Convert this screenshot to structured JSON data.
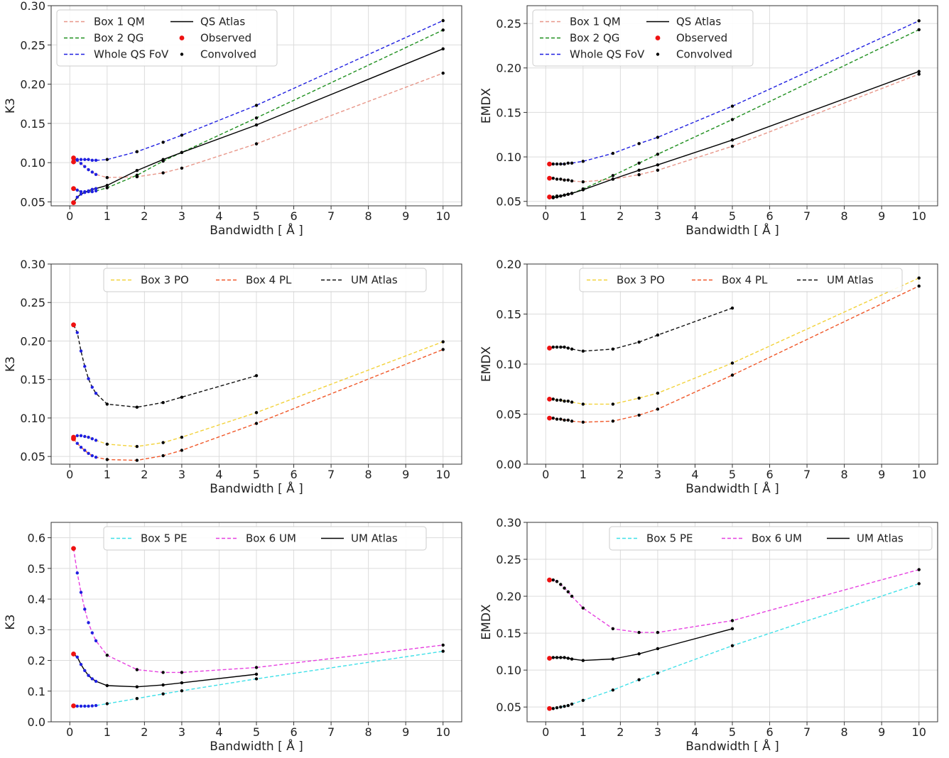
{
  "chart_data": [
    {
      "type": "line",
      "xlabel": "Bandwidth [ Å ]",
      "ylabel": "K3",
      "xlim": [
        -0.5,
        10.5
      ],
      "ylim": [
        0.045,
        0.3
      ],
      "xticks": [
        "0",
        "1",
        "2",
        "3",
        "4",
        "5",
        "6",
        "7",
        "8",
        "9",
        "10"
      ],
      "yticks": [
        "0.05",
        "0.10",
        "0.15",
        "0.20",
        "0.25",
        "0.30"
      ],
      "grid": true,
      "legend": {
        "placement": "top-left",
        "columns": 2,
        "entries": [
          "Box 1 QM",
          "Box 2 QG",
          "Whole QS FoV",
          "QS Atlas",
          "Observed",
          "Convolved"
        ]
      },
      "series": [
        {
          "name": "Box 1 QM",
          "color": "#e8978a",
          "dash": "dashed",
          "x": [
            0.1,
            0.2,
            0.3,
            0.4,
            0.5,
            0.6,
            0.7,
            1.0,
            1.8,
            2.5,
            3.0,
            5.0,
            10.0
          ],
          "y": [
            0.106,
            0.103,
            0.099,
            0.095,
            0.091,
            0.088,
            0.085,
            0.081,
            0.082,
            0.087,
            0.093,
            0.124,
            0.214
          ]
        },
        {
          "name": "Box 2 QG",
          "color": "#1f8f1f",
          "dash": "dashed",
          "x": [
            0.1,
            0.2,
            0.3,
            0.4,
            0.5,
            0.6,
            0.7,
            1.0,
            1.8,
            2.5,
            3.0,
            5.0,
            10.0
          ],
          "y": [
            0.067,
            0.065,
            0.063,
            0.063,
            0.063,
            0.063,
            0.064,
            0.068,
            0.084,
            0.102,
            0.113,
            0.157,
            0.269
          ]
        },
        {
          "name": "Whole QS FoV",
          "color": "#1f1fe0",
          "dash": "dashed",
          "x": [
            0.1,
            0.2,
            0.3,
            0.4,
            0.5,
            0.6,
            0.7,
            1.0,
            1.8,
            2.5,
            3.0,
            5.0,
            10.0
          ],
          "y": [
            0.104,
            0.104,
            0.104,
            0.104,
            0.104,
            0.103,
            0.103,
            0.104,
            0.114,
            0.126,
            0.135,
            0.173,
            0.281
          ]
        },
        {
          "name": "QS Atlas",
          "color": "#000000",
          "dash": "solid",
          "x": [
            0.1,
            0.2,
            0.3,
            0.4,
            0.5,
            0.6,
            0.7,
            1.0,
            1.8,
            2.5,
            3.0,
            5.0,
            10.0
          ],
          "y": [
            0.049,
            0.056,
            0.06,
            0.062,
            0.064,
            0.066,
            0.067,
            0.071,
            0.09,
            0.104,
            0.113,
            0.148,
            0.245
          ]
        }
      ],
      "observed": [
        {
          "x": 0.1,
          "y": 0.106
        },
        {
          "x": 0.1,
          "y": 0.101
        },
        {
          "x": 0.1,
          "y": 0.067
        },
        {
          "x": 0.1,
          "y": 0.049
        }
      ]
    },
    {
      "type": "line",
      "xlabel": "Bandwidth [ Å ]",
      "ylabel": "EMDX",
      "xlim": [
        -0.5,
        10.5
      ],
      "ylim": [
        0.045,
        0.27
      ],
      "xticks": [
        "0",
        "1",
        "2",
        "3",
        "4",
        "5",
        "6",
        "7",
        "8",
        "9",
        "10"
      ],
      "yticks": [
        "0.05",
        "0.10",
        "0.15",
        "0.20",
        "0.25"
      ],
      "grid": true,
      "legend": {
        "placement": "top-left",
        "columns": 2,
        "entries": [
          "Box 1 QM",
          "Box 2 QG",
          "Whole QS FoV",
          "QS Atlas",
          "Observed",
          "Convolved"
        ]
      },
      "series": [
        {
          "name": "Box 1 QM",
          "color": "#e8978a",
          "dash": "dashed",
          "x": [
            0.1,
            0.2,
            0.3,
            0.4,
            0.5,
            0.6,
            0.7,
            1.0,
            1.8,
            2.5,
            3.0,
            5.0,
            10.0
          ],
          "y": [
            0.076,
            0.076,
            0.075,
            0.075,
            0.074,
            0.074,
            0.073,
            0.072,
            0.075,
            0.08,
            0.085,
            0.112,
            0.193
          ]
        },
        {
          "name": "Box 2 QG",
          "color": "#1f8f1f",
          "dash": "dashed",
          "x": [
            0.1,
            0.2,
            0.3,
            0.4,
            0.5,
            0.6,
            0.7,
            1.0,
            1.8,
            2.5,
            3.0,
            5.0,
            10.0
          ],
          "y": [
            0.055,
            0.055,
            0.056,
            0.056,
            0.057,
            0.058,
            0.059,
            0.064,
            0.079,
            0.093,
            0.103,
            0.142,
            0.243
          ]
        },
        {
          "name": "Whole QS FoV",
          "color": "#1f1fe0",
          "dash": "dashed",
          "x": [
            0.1,
            0.2,
            0.3,
            0.4,
            0.5,
            0.6,
            0.7,
            1.0,
            1.8,
            2.5,
            3.0,
            5.0,
            10.0
          ],
          "y": [
            0.092,
            0.092,
            0.092,
            0.092,
            0.092,
            0.093,
            0.093,
            0.095,
            0.104,
            0.115,
            0.122,
            0.157,
            0.253
          ]
        },
        {
          "name": "QS Atlas",
          "color": "#000000",
          "dash": "solid",
          "x": [
            0.1,
            0.2,
            0.3,
            0.4,
            0.5,
            0.6,
            0.7,
            1.0,
            1.8,
            2.5,
            3.0,
            5.0,
            10.0
          ],
          "y": [
            0.054,
            0.054,
            0.055,
            0.056,
            0.057,
            0.058,
            0.059,
            0.063,
            0.075,
            0.085,
            0.091,
            0.119,
            0.196
          ]
        }
      ],
      "observed": [
        {
          "x": 0.1,
          "y": 0.092
        },
        {
          "x": 0.1,
          "y": 0.076
        },
        {
          "x": 0.1,
          "y": 0.055
        }
      ]
    },
    {
      "type": "line",
      "xlabel": "Bandwidth [ Å ]",
      "ylabel": "K3",
      "xlim": [
        -0.5,
        10.5
      ],
      "ylim": [
        0.04,
        0.3
      ],
      "xticks": [
        "0",
        "1",
        "2",
        "3",
        "4",
        "5",
        "6",
        "7",
        "8",
        "9",
        "10"
      ],
      "yticks": [
        "0.05",
        "0.10",
        "0.15",
        "0.20",
        "0.25",
        "0.30"
      ],
      "grid": true,
      "legend": {
        "placement": "top-center",
        "columns": 3,
        "entries": [
          "Box 3 PO",
          "Box 4 PL",
          "UM Atlas"
        ]
      },
      "series": [
        {
          "name": "Box 3 PO",
          "color": "#f2d23a",
          "dash": "dashed",
          "x": [
            0.1,
            0.2,
            0.3,
            0.4,
            0.5,
            0.6,
            0.7,
            1.0,
            1.8,
            2.5,
            3.0,
            5.0,
            10.0
          ],
          "y": [
            0.075,
            0.077,
            0.077,
            0.076,
            0.075,
            0.073,
            0.071,
            0.066,
            0.063,
            0.068,
            0.075,
            0.107,
            0.199
          ]
        },
        {
          "name": "Box 4 PL",
          "color": "#f0582a",
          "dash": "dashed",
          "x": [
            0.1,
            0.2,
            0.3,
            0.4,
            0.5,
            0.6,
            0.7,
            1.0,
            1.8,
            2.5,
            3.0,
            5.0,
            10.0
          ],
          "y": [
            0.073,
            0.067,
            0.062,
            0.058,
            0.054,
            0.051,
            0.049,
            0.046,
            0.045,
            0.051,
            0.058,
            0.093,
            0.189
          ]
        },
        {
          "name": "UM Atlas",
          "color": "#111111",
          "dash": "dashed",
          "x": [
            0.1,
            0.2,
            0.3,
            0.4,
            0.5,
            0.6,
            0.7,
            1.0,
            1.8,
            2.5,
            3.0,
            5.0
          ],
          "y": [
            0.221,
            0.211,
            0.187,
            0.167,
            0.151,
            0.14,
            0.132,
            0.118,
            0.114,
            0.12,
            0.127,
            0.155
          ]
        }
      ],
      "observed": [
        {
          "x": 0.1,
          "y": 0.221
        },
        {
          "x": 0.1,
          "y": 0.075
        },
        {
          "x": 0.1,
          "y": 0.073
        }
      ]
    },
    {
      "type": "line",
      "xlabel": "Bandwidth [ Å ]",
      "ylabel": "EMDX",
      "xlim": [
        -0.5,
        10.5
      ],
      "ylim": [
        0.0,
        0.2
      ],
      "xticks": [
        "0",
        "1",
        "2",
        "3",
        "4",
        "5",
        "6",
        "7",
        "8",
        "9",
        "10"
      ],
      "yticks": [
        "0.00",
        "0.05",
        "0.10",
        "0.15",
        "0.20"
      ],
      "grid": true,
      "legend": {
        "placement": "top-center",
        "columns": 3,
        "entries": [
          "Box 3 PO",
          "Box 4 PL",
          "UM Atlas"
        ]
      },
      "series": [
        {
          "name": "Box 3 PO",
          "color": "#f2d23a",
          "dash": "dashed",
          "x": [
            0.1,
            0.2,
            0.3,
            0.4,
            0.5,
            0.6,
            0.7,
            1.0,
            1.8,
            2.5,
            3.0,
            5.0,
            10.0
          ],
          "y": [
            0.065,
            0.065,
            0.064,
            0.064,
            0.063,
            0.063,
            0.062,
            0.06,
            0.06,
            0.066,
            0.071,
            0.101,
            0.186
          ]
        },
        {
          "name": "Box 4 PL",
          "color": "#f0582a",
          "dash": "dashed",
          "x": [
            0.1,
            0.2,
            0.3,
            0.4,
            0.5,
            0.6,
            0.7,
            1.0,
            1.8,
            2.5,
            3.0,
            5.0,
            10.0
          ],
          "y": [
            0.046,
            0.046,
            0.045,
            0.045,
            0.044,
            0.044,
            0.043,
            0.042,
            0.043,
            0.049,
            0.055,
            0.089,
            0.178
          ]
        },
        {
          "name": "UM Atlas",
          "color": "#111111",
          "dash": "dashed",
          "x": [
            0.1,
            0.2,
            0.3,
            0.4,
            0.5,
            0.6,
            0.7,
            1.0,
            1.8,
            2.5,
            3.0,
            5.0
          ],
          "y": [
            0.116,
            0.117,
            0.117,
            0.117,
            0.117,
            0.116,
            0.115,
            0.113,
            0.115,
            0.122,
            0.129,
            0.156
          ]
        }
      ],
      "observed": [
        {
          "x": 0.1,
          "y": 0.116
        },
        {
          "x": 0.1,
          "y": 0.065
        },
        {
          "x": 0.1,
          "y": 0.046
        }
      ]
    },
    {
      "type": "line",
      "xlabel": "Bandwidth [ Å ]",
      "ylabel": "K3",
      "xlim": [
        -0.5,
        10.5
      ],
      "ylim": [
        0.0,
        0.65
      ],
      "xticks": [
        "0",
        "1",
        "2",
        "3",
        "4",
        "5",
        "6",
        "7",
        "8",
        "9",
        "10"
      ],
      "yticks": [
        "0.0",
        "0.1",
        "0.2",
        "0.3",
        "0.4",
        "0.5",
        "0.6"
      ],
      "grid": true,
      "legend": {
        "placement": "top-center",
        "columns": 3,
        "entries": [
          "Box 5 PE",
          "Box 6 UM",
          "UM Atlas"
        ]
      },
      "series": [
        {
          "name": "Box 5 PE",
          "color": "#3fe0e8",
          "dash": "dashed",
          "x": [
            0.1,
            0.2,
            0.3,
            0.4,
            0.5,
            0.6,
            0.7,
            1.0,
            1.8,
            2.5,
            3.0,
            5.0,
            10.0
          ],
          "y": [
            0.052,
            0.051,
            0.051,
            0.051,
            0.051,
            0.052,
            0.053,
            0.059,
            0.076,
            0.091,
            0.101,
            0.14,
            0.23
          ]
        },
        {
          "name": "Box 6 UM",
          "color": "#e640e0",
          "dash": "dashed",
          "x": [
            0.1,
            0.2,
            0.3,
            0.4,
            0.5,
            0.6,
            0.7,
            1.0,
            1.8,
            2.5,
            3.0,
            5.0,
            10.0
          ],
          "y": [
            0.565,
            0.485,
            0.422,
            0.367,
            0.323,
            0.29,
            0.264,
            0.217,
            0.17,
            0.161,
            0.161,
            0.177,
            0.25
          ]
        },
        {
          "name": "UM Atlas",
          "color": "#000000",
          "dash": "solid",
          "x": [
            0.1,
            0.2,
            0.3,
            0.4,
            0.5,
            0.6,
            0.7,
            1.0,
            1.8,
            2.5,
            3.0,
            5.0
          ],
          "y": [
            0.221,
            0.211,
            0.187,
            0.167,
            0.151,
            0.14,
            0.132,
            0.118,
            0.114,
            0.12,
            0.127,
            0.155
          ]
        }
      ],
      "observed": [
        {
          "x": 0.1,
          "y": 0.565
        },
        {
          "x": 0.1,
          "y": 0.221
        },
        {
          "x": 0.1,
          "y": 0.052
        }
      ]
    },
    {
      "type": "line",
      "xlabel": "Bandwidth [ Å ]",
      "ylabel": "EMDX",
      "xlim": [
        -0.5,
        10.5
      ],
      "ylim": [
        0.03,
        0.3
      ],
      "xticks": [
        "0",
        "1",
        "2",
        "3",
        "4",
        "5",
        "6",
        "7",
        "8",
        "9",
        "10"
      ],
      "yticks": [
        "0.05",
        "0.10",
        "0.15",
        "0.20",
        "0.25",
        "0.30"
      ],
      "grid": true,
      "legend": {
        "placement": "top-right",
        "columns": 3,
        "entries": [
          "Box 5 PE",
          "Box 6 UM",
          "UM Atlas"
        ]
      },
      "series": [
        {
          "name": "Box 5 PE",
          "color": "#3fe0e8",
          "dash": "dashed",
          "x": [
            0.1,
            0.2,
            0.3,
            0.4,
            0.5,
            0.6,
            0.7,
            1.0,
            1.8,
            2.5,
            3.0,
            5.0,
            10.0
          ],
          "y": [
            0.048,
            0.048,
            0.049,
            0.05,
            0.051,
            0.052,
            0.054,
            0.059,
            0.073,
            0.087,
            0.096,
            0.133,
            0.217
          ]
        },
        {
          "name": "Box 6 UM",
          "color": "#e640e0",
          "dash": "dashed",
          "x": [
            0.1,
            0.2,
            0.3,
            0.4,
            0.5,
            0.6,
            0.7,
            1.0,
            1.8,
            2.5,
            3.0,
            5.0,
            10.0
          ],
          "y": [
            0.222,
            0.222,
            0.22,
            0.216,
            0.211,
            0.206,
            0.2,
            0.184,
            0.156,
            0.151,
            0.151,
            0.167,
            0.236
          ]
        },
        {
          "name": "UM Atlas",
          "color": "#000000",
          "dash": "solid",
          "x": [
            0.1,
            0.2,
            0.3,
            0.4,
            0.5,
            0.6,
            0.7,
            1.0,
            1.8,
            2.5,
            3.0,
            5.0
          ],
          "y": [
            0.116,
            0.117,
            0.117,
            0.117,
            0.117,
            0.116,
            0.115,
            0.113,
            0.115,
            0.122,
            0.129,
            0.156
          ]
        }
      ],
      "observed": [
        {
          "x": 0.1,
          "y": 0.222
        },
        {
          "x": 0.1,
          "y": 0.116
        },
        {
          "x": 0.1,
          "y": 0.048
        }
      ]
    }
  ],
  "legend_markers": {
    "observed_label": "Observed",
    "convolved_label": "Convolved",
    "observed_color": "#ee1111",
    "convolved_color": "#000000",
    "inner_dot_color": "#1f1fe0"
  }
}
